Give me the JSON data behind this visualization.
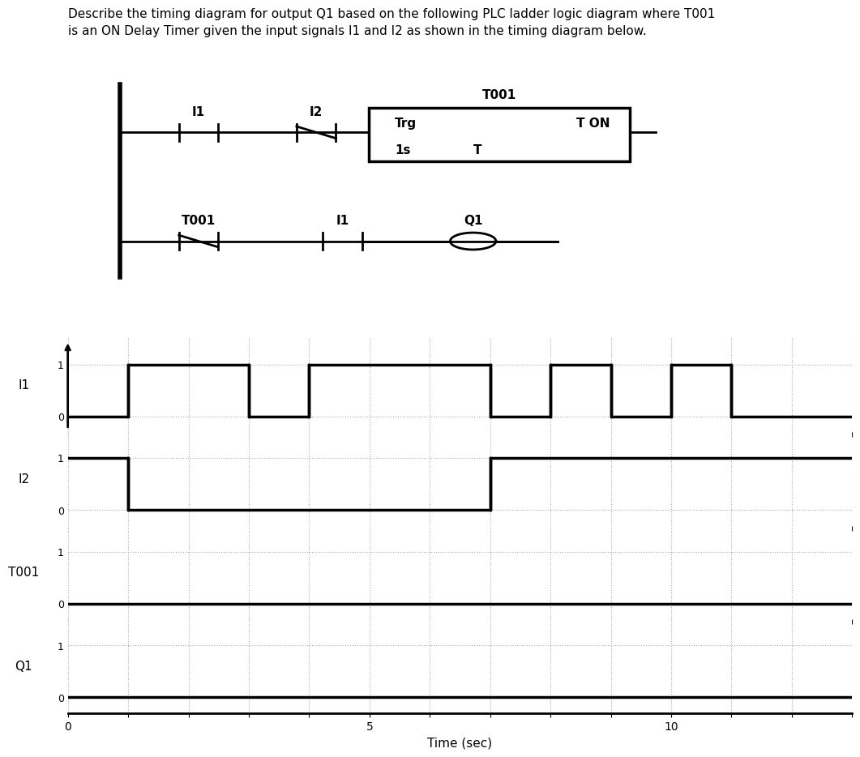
{
  "title_text": "Describe the timing diagram for output Q1 based on the following PLC ladder logic diagram where T001\nis an ON Delay Timer given the input signals I1 and I2 as shown in the timing diagram below.",
  "signals": {
    "I1": {
      "times": [
        0,
        1,
        1,
        3,
        3,
        4,
        4,
        7,
        7,
        8,
        8,
        9,
        9,
        10,
        10,
        11,
        11,
        13
      ],
      "values": [
        0,
        0,
        1,
        1,
        0,
        0,
        1,
        1,
        0,
        0,
        1,
        1,
        0,
        0,
        1,
        1,
        0,
        0
      ]
    },
    "I2": {
      "times": [
        0,
        1,
        1,
        7,
        7,
        13
      ],
      "values": [
        1,
        1,
        0,
        0,
        1,
        1
      ]
    },
    "T001": {
      "times": [
        0,
        13
      ],
      "values": [
        0,
        0
      ]
    },
    "Q1": {
      "times": [
        0,
        13
      ],
      "values": [
        0,
        0
      ]
    }
  },
  "signal_order": [
    "I1",
    "I2",
    "T001",
    "Q1"
  ],
  "xlim": [
    0,
    13
  ],
  "xlabel": "Time (sec)",
  "grid_color": "#aaaaaa",
  "signal_lw": 2.5,
  "signal_color": "#000000",
  "background_color": "#ffffff",
  "ladder": {
    "rung1": {
      "I1": "I1",
      "I2": "I2",
      "timer": "T001",
      "trg": "Trg",
      "ton": "T ON",
      "preset": "1s",
      "t_label": "T"
    },
    "rung2": {
      "nc_contact": "T001",
      "no_contact": "I1",
      "coil": "Q1"
    }
  }
}
